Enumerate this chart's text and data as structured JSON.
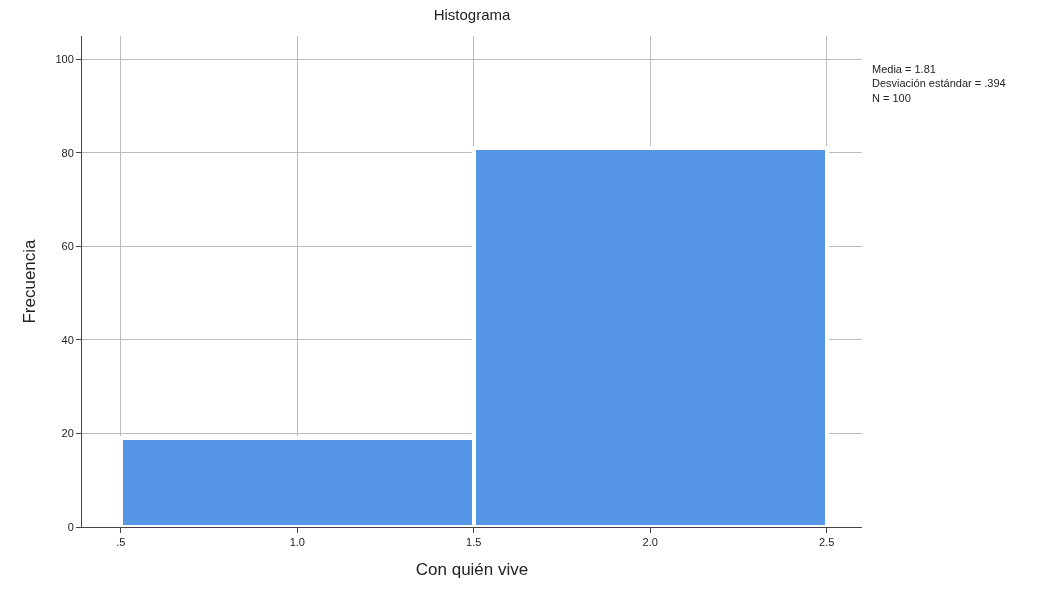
{
  "chart_data": {
    "type": "histogram",
    "title": "Histograma",
    "xlabel": "Con quién vive",
    "ylabel": "Frecuencia",
    "bins": [
      0.5,
      1.5,
      2.5
    ],
    "values": [
      19,
      81
    ],
    "color": "#5596e6",
    "xlim": [
      0.39,
      2.6
    ],
    "xticks": [
      {
        "value": 0.5,
        "label": ".5"
      },
      {
        "value": 1.0,
        "label": "1.0"
      },
      {
        "value": 1.5,
        "label": "1.5"
      },
      {
        "value": 2.0,
        "label": "2.0"
      },
      {
        "value": 2.5,
        "label": "2.5"
      }
    ],
    "ylim": [
      0,
      105
    ],
    "yticks": [
      0,
      20,
      40,
      60,
      80,
      100
    ],
    "grid": true,
    "annotations": [
      "Media = 1.81",
      "Desviación estándar = .394",
      "N = 100"
    ]
  }
}
